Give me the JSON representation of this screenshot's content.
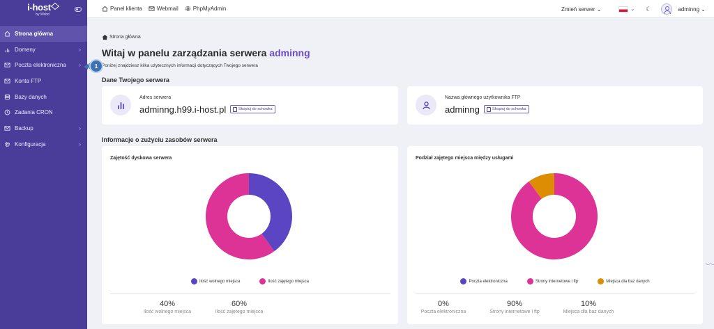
{
  "logo": {
    "main": "i-host",
    "sub": "by Webd"
  },
  "sidebar": {
    "items": [
      {
        "label": "Strona główna",
        "icon": "home-icon",
        "active": true,
        "chevron": false
      },
      {
        "label": "Domeny",
        "icon": "bar-chart-icon",
        "active": false,
        "chevron": true
      },
      {
        "label": "Poczta elektroniczna",
        "icon": "mail-icon",
        "active": false,
        "chevron": true
      },
      {
        "label": "Konta FTP",
        "icon": "mail-icon",
        "active": false,
        "chevron": false
      },
      {
        "label": "Bazy danych",
        "icon": "database-icon",
        "active": false,
        "chevron": false
      },
      {
        "label": "Zadania CRON",
        "icon": "clock-icon",
        "active": false,
        "chevron": false
      },
      {
        "label": "Backup",
        "icon": "mail-icon",
        "active": false,
        "chevron": true
      },
      {
        "label": "Konfiguracja",
        "icon": "gear-icon",
        "active": false,
        "chevron": true
      }
    ]
  },
  "topbar": {
    "links": [
      {
        "label": "Panel klienta",
        "icon": "home-icon"
      },
      {
        "label": "Webmail",
        "icon": "mail-icon"
      },
      {
        "label": "PhpMyAdmin",
        "icon": "gear-icon"
      }
    ],
    "server_switch": "Zmień serwer ⌄",
    "language": "PL",
    "username": "adminng ⌄"
  },
  "breadcrumb": "Strona główna",
  "welcome": {
    "prefix": "Witaj w panelu zarządzania serwera ",
    "username": "adminng",
    "subtitle": "Poniżej znajdziesz kilka użytecznych informacji dotyczących Twojego serwera"
  },
  "server_section": {
    "title": "Dane Twojego serwera",
    "address_label": "Adres serwera",
    "address_value": "adminng.h99.i-host.pl",
    "ftp_label": "Nazwa głównego użytkownika FTP",
    "ftp_value": "adminng",
    "copy_label": "Skopiuj do schowka"
  },
  "resources_section": {
    "title": "Informacje o zużyciu zasobów serwera"
  },
  "colors": {
    "purple": "#5b45c2",
    "pink": "#de3396",
    "orange": "#dc8d04",
    "sidebar": "#4a3d9a"
  },
  "chart_data": [
    {
      "type": "pie",
      "title": "Zajętość dyskowa serwera",
      "categories": [
        "Ilość wolnego miejsca",
        "Ilość zajętego miejsca"
      ],
      "values": [
        40,
        60
      ],
      "value_labels": [
        "40%",
        "60%"
      ],
      "colors": [
        "#5b45c2",
        "#de3396"
      ],
      "legend_position": "bottom"
    },
    {
      "type": "pie",
      "title": "Podział zajętego miejsca między usługami",
      "categories": [
        "Poczta elektroniczna",
        "Strony internetowe i ftp",
        "Miejsca dla baz danych"
      ],
      "values": [
        0,
        90,
        10
      ],
      "value_labels": [
        "0%",
        "90%",
        "10%"
      ],
      "colors": [
        "#5b45c2",
        "#de3396",
        "#dc8d04"
      ],
      "legend_position": "bottom"
    }
  ],
  "step_badge": "1"
}
